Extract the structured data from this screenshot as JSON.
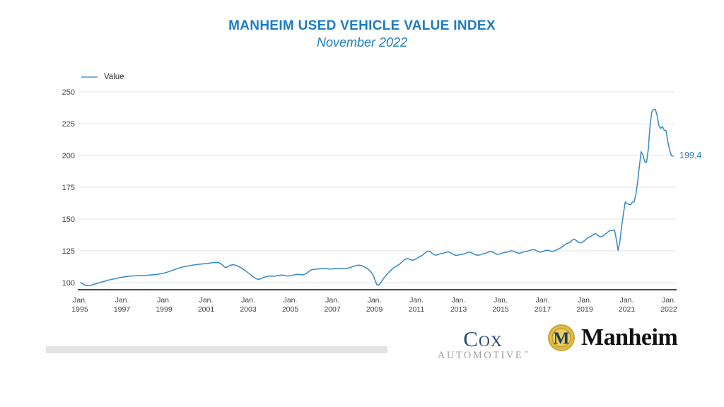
{
  "header": {
    "title": "MANHEIM USED VEHICLE VALUE INDEX",
    "subtitle": "November 2022"
  },
  "legend": {
    "label": "Value"
  },
  "footer": {
    "cox": {
      "name": "Cox",
      "division": "AUTOMOTIVE",
      "trademark": "™"
    },
    "manheim": {
      "wordmark": "Manheim",
      "coin_letter": "M"
    }
  },
  "colors": {
    "title_blue": "#1b7cc3",
    "line_blue": "#3488c8",
    "legend_swatch_blue": "#7fb3d8",
    "annotation_blue": "#2e7fbe",
    "grid_gray": "#e4e4e4",
    "axis_gray": "#474747",
    "tick_label_gray": "#454545",
    "divider_gray": "#e4e4e4",
    "cox_navy": "#27497e",
    "cox_gray": "#9b9ea3",
    "coin_gold_outer": "#cda233",
    "coin_gold_inner": "#e9cd5e",
    "coin_navy": "#1d3a5f",
    "manheim_black": "#121212"
  },
  "chart_data": {
    "type": "line",
    "title": "MANHEIM USED VEHICLE VALUE INDEX",
    "subtitle": "November 2022",
    "xlabel": "",
    "ylabel": "",
    "grid": "horizontal",
    "legend_position": "top-left",
    "ylim": [
      94,
      255
    ],
    "y_ticks": [
      100,
      125,
      150,
      175,
      200,
      225,
      250
    ],
    "x_tick_labels": [
      [
        "Jan.",
        "1995"
      ],
      [
        "Jan.",
        "1997"
      ],
      [
        "Jan.",
        "1999"
      ],
      [
        "Jan.",
        "2001"
      ],
      [
        "Jan.",
        "2003"
      ],
      [
        "Jan.",
        "2005"
      ],
      [
        "Jan.",
        "2007"
      ],
      [
        "Jan.",
        "2009"
      ],
      [
        "Jan.",
        "2011"
      ],
      [
        "Jan.",
        "2013"
      ],
      [
        "Jan.",
        "2015"
      ],
      [
        "Jan.",
        "2017"
      ],
      [
        "Jan.",
        "2019"
      ],
      [
        "Jan.",
        "2021"
      ],
      [
        "Jan.",
        "2022"
      ]
    ],
    "last_value_label": "199.4",
    "line_color": "#3488c8",
    "series": [
      {
        "name": "Value",
        "frequency": "monthly",
        "start": "Jan 1995",
        "end": "Nov 2022",
        "values": [
          100.0,
          99.2,
          98.4,
          97.8,
          97.6,
          97.7,
          98.0,
          98.4,
          98.9,
          99.3,
          99.7,
          100.1,
          100.5,
          100.9,
          101.3,
          101.7,
          102.1,
          102.4,
          102.7,
          103.0,
          103.3,
          103.6,
          103.9,
          104.1,
          104.4,
          104.6,
          104.8,
          105.0,
          105.1,
          105.2,
          105.3,
          105.4,
          105.4,
          105.5,
          105.5,
          105.6,
          105.7,
          105.8,
          105.9,
          106.0,
          106.1,
          106.2,
          106.3,
          106.5,
          106.7,
          106.9,
          107.2,
          107.5,
          107.9,
          108.3,
          108.8,
          109.3,
          109.8,
          110.3,
          110.8,
          111.3,
          111.7,
          112.1,
          112.4,
          112.7,
          113.0,
          113.3,
          113.5,
          113.7,
          113.9,
          114.1,
          114.3,
          114.5,
          114.6,
          114.8,
          114.9,
          115.0,
          115.2,
          115.4,
          115.6,
          115.8,
          116.0,
          115.9,
          115.6,
          115.0,
          113.8,
          112.4,
          111.8,
          112.6,
          113.4,
          113.9,
          114.1,
          113.8,
          113.3,
          112.7,
          112.0,
          111.2,
          110.3,
          109.3,
          108.2,
          107.1,
          106.0,
          104.9,
          103.9,
          103.1,
          102.6,
          102.8,
          103.3,
          103.9,
          104.4,
          104.8,
          105.1,
          105.2,
          105.1,
          105.0,
          105.2,
          105.5,
          105.8,
          106.0,
          105.9,
          105.6,
          105.3,
          105.2,
          105.4,
          105.7,
          106.0,
          106.3,
          106.5,
          106.4,
          106.2,
          106.1,
          106.4,
          107.0,
          108.0,
          109.2,
          110.0,
          110.4,
          110.5,
          110.6,
          110.8,
          111.0,
          111.2,
          111.3,
          111.2,
          111.0,
          110.8,
          110.7,
          110.8,
          111.0,
          111.2,
          111.3,
          111.2,
          111.0,
          110.9,
          111.0,
          111.2,
          111.5,
          111.9,
          112.4,
          112.9,
          113.3,
          113.6,
          113.7,
          113.5,
          113.0,
          112.4,
          111.6,
          110.6,
          109.4,
          107.8,
          105.6,
          101.8,
          98.4,
          98.0,
          99.5,
          101.6,
          103.6,
          105.4,
          107.0,
          108.5,
          109.9,
          111.1,
          112.1,
          113.0,
          113.8,
          114.8,
          116.0,
          117.3,
          118.3,
          118.9,
          118.7,
          118.0,
          117.6,
          117.9,
          118.6,
          119.5,
          120.3,
          121.0,
          121.9,
          123.1,
          124.3,
          124.9,
          124.4,
          123.2,
          122.1,
          121.6,
          121.8,
          122.4,
          122.8,
          123.0,
          123.4,
          123.9,
          124.2,
          123.9,
          123.1,
          122.2,
          121.6,
          121.4,
          121.7,
          122.1,
          122.3,
          122.5,
          123.0,
          123.6,
          124.0,
          123.7,
          123.0,
          122.2,
          121.7,
          121.5,
          121.8,
          122.3,
          122.7,
          123.0,
          123.5,
          124.1,
          124.5,
          124.2,
          123.5,
          122.7,
          122.2,
          122.4,
          122.9,
          123.4,
          123.7,
          123.9,
          124.3,
          124.8,
          125.1,
          124.8,
          124.2,
          123.5,
          123.1,
          123.3,
          123.8,
          124.3,
          124.6,
          124.8,
          125.2,
          125.7,
          126.0,
          125.7,
          125.1,
          124.4,
          124.0,
          124.2,
          124.7,
          125.2,
          125.5,
          125.2,
          124.8,
          124.6,
          124.9,
          125.5,
          126.2,
          126.9,
          127.6,
          128.6,
          129.8,
          130.8,
          131.2,
          131.8,
          133.2,
          134.2,
          133.6,
          132.4,
          131.6,
          131.3,
          131.9,
          133.0,
          134.3,
          135.4,
          136.0,
          136.6,
          137.6,
          138.6,
          138.0,
          136.8,
          136.0,
          136.3,
          137.2,
          138.4,
          139.6,
          140.6,
          141.0,
          141.2,
          141.4,
          134.0,
          125.3,
          132.5,
          144.0,
          154.0,
          163.4,
          162.2,
          161.6,
          161.1,
          163.2,
          163.6,
          169.0,
          179.2,
          191.5,
          203.0,
          200.4,
          195.2,
          194.5,
          204.8,
          223.7,
          234.3,
          236.2,
          236.3,
          231.3,
          223.5,
          221.2,
          222.7,
          219.8,
          219.6,
          210.8,
          204.5,
          200.0,
          199.4
        ]
      }
    ]
  }
}
